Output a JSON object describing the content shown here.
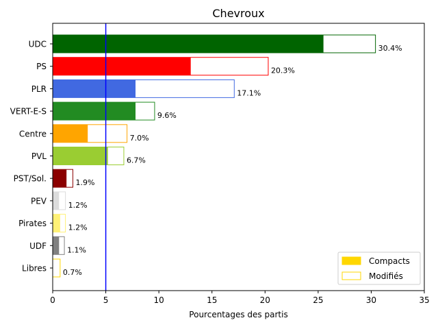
{
  "chart_data": {
    "type": "bar",
    "orientation": "horizontal",
    "title": "Chevroux",
    "xlabel": "Pourcentages des partis",
    "ylabel": "",
    "xlim": [
      0,
      35
    ],
    "xticks": [
      0,
      5,
      10,
      15,
      20,
      25,
      30,
      35
    ],
    "reference_line": {
      "x": 5,
      "color": "#0000ff"
    },
    "legend": {
      "position": "lower-right",
      "entries": [
        {
          "label": "Compacts",
          "style": "filled",
          "color": "#ffd700"
        },
        {
          "label": "Modifiés",
          "style": "outline",
          "color": "#ffd700"
        }
      ]
    },
    "categories": [
      "UDC",
      "PS",
      "PLR",
      "VERT-E-S",
      "Centre",
      "PVL",
      "PST/Sol.",
      "PEV",
      "Pirates",
      "UDF",
      "Libres"
    ],
    "compacts": [
      25.5,
      13.0,
      7.8,
      7.8,
      3.3,
      5.2,
      1.3,
      0.6,
      0.7,
      0.6,
      0.0
    ],
    "totals": [
      30.4,
      20.3,
      17.1,
      9.6,
      7.0,
      6.7,
      1.9,
      1.2,
      1.2,
      1.1,
      0.7
    ],
    "value_labels": [
      "30.4%",
      "20.3%",
      "17.1%",
      "9.6%",
      "7.0%",
      "6.7%",
      "1.9%",
      "1.2%",
      "1.2%",
      "1.1%",
      "0.7%"
    ],
    "colors": [
      "#006400",
      "#ff0000",
      "#4169e1",
      "#228b22",
      "#ffa500",
      "#9acd32",
      "#8b0000",
      "#dcdcdc",
      "#fff176",
      "#808080",
      "#ffd700"
    ]
  }
}
